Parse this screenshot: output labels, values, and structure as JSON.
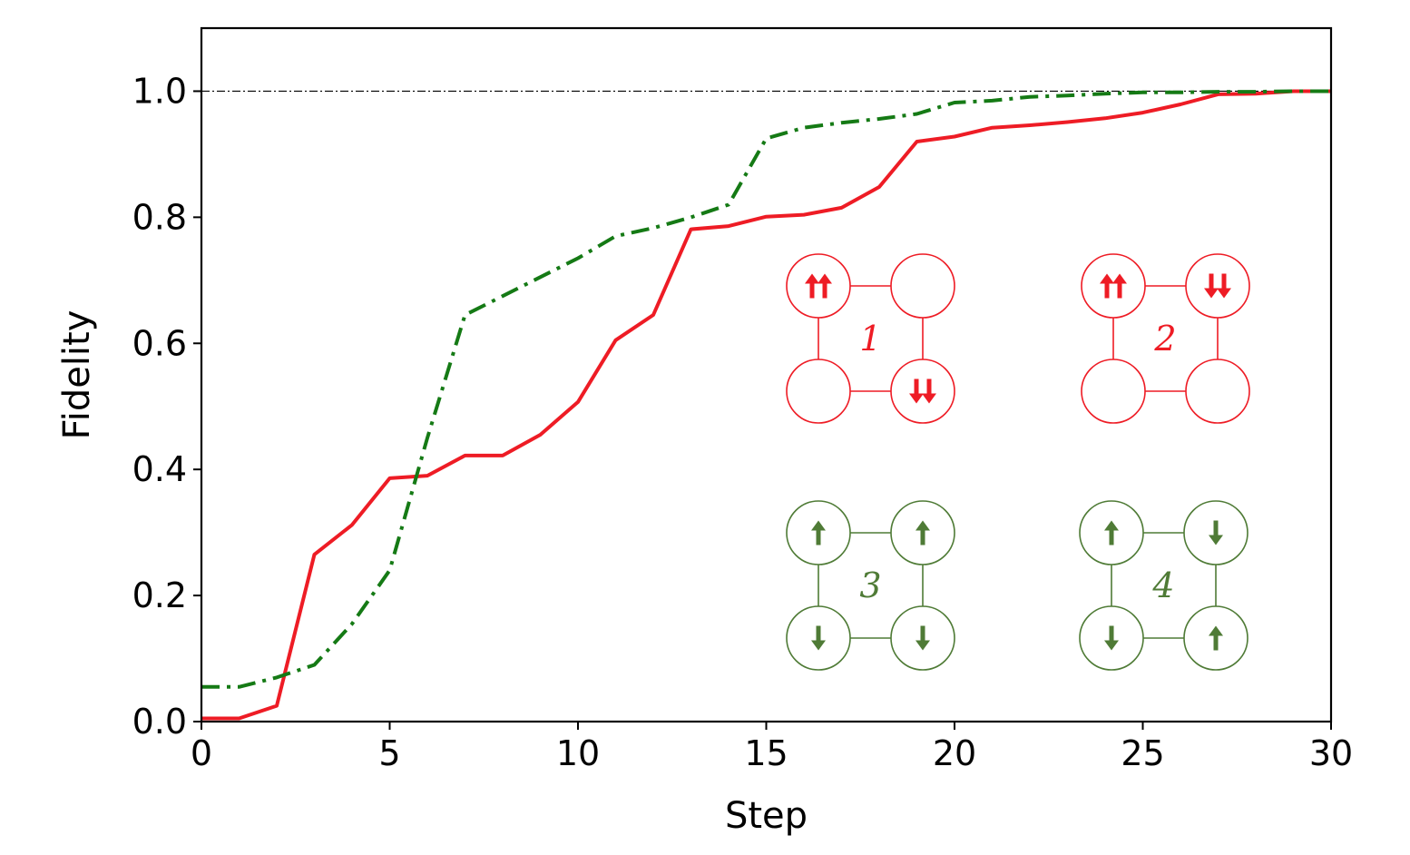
{
  "chart_data": {
    "type": "line",
    "title": "",
    "xlabel": "Step",
    "ylabel": "Fidelity",
    "xlim": [
      0,
      30
    ],
    "ylim": [
      0,
      1.1
    ],
    "xticks": [
      0,
      5,
      10,
      15,
      20,
      25,
      30
    ],
    "yticks": [
      0.0,
      0.2,
      0.4,
      0.6,
      0.8,
      1.0
    ],
    "xtick_labels": [
      "0",
      "5",
      "10",
      "15",
      "20",
      "25",
      "30"
    ],
    "ytick_labels": [
      "0.0",
      "0.2",
      "0.4",
      "0.6",
      "0.8",
      "1.0"
    ],
    "reference_line": {
      "y": 1.0,
      "style": "dash-dot",
      "color": "#000000"
    },
    "grid": false,
    "legend": "none",
    "x": [
      0,
      1,
      2,
      3,
      4,
      5,
      6,
      7,
      8,
      9,
      10,
      11,
      12,
      13,
      14,
      15,
      16,
      17,
      18,
      19,
      20,
      21,
      22,
      23,
      24,
      25,
      26,
      27,
      28,
      29,
      30
    ],
    "series": [
      {
        "color": "#ee1c25",
        "style": "solid",
        "values": [
          0.005,
          0.005,
          0.025,
          0.265,
          0.312,
          0.386,
          0.39,
          0.422,
          0.422,
          0.455,
          0.507,
          0.605,
          0.645,
          0.781,
          0.786,
          0.801,
          0.804,
          0.815,
          0.848,
          0.92,
          0.928,
          0.942,
          0.946,
          0.951,
          0.957,
          0.966,
          0.979,
          0.995,
          0.996,
          1.0,
          1.0
        ]
      },
      {
        "color": "#157a15",
        "style": "dash-dot",
        "values": [
          0.055,
          0.055,
          0.07,
          0.09,
          0.155,
          0.24,
          0.45,
          0.645,
          0.675,
          0.705,
          0.735,
          0.77,
          0.783,
          0.8,
          0.82,
          0.925,
          0.942,
          0.95,
          0.956,
          0.964,
          0.982,
          0.985,
          0.991,
          0.993,
          0.996,
          0.998,
          0.998,
          0.999,
          0.999,
          1.0,
          1.0
        ]
      }
    ],
    "insets": [
      {
        "label": "1",
        "color": "#ee1c25",
        "sites": [
          "up-up",
          "empty",
          "empty",
          "down-down"
        ]
      },
      {
        "label": "2",
        "color": "#ee1c25",
        "sites": [
          "up-up",
          "down-down",
          "empty",
          "empty"
        ]
      },
      {
        "label": "3",
        "color": "#4f7b36",
        "sites": [
          "up",
          "up",
          "down",
          "down"
        ]
      },
      {
        "label": "4",
        "color": "#4f7b36",
        "sites": [
          "up",
          "down",
          "down",
          "up"
        ]
      }
    ]
  }
}
